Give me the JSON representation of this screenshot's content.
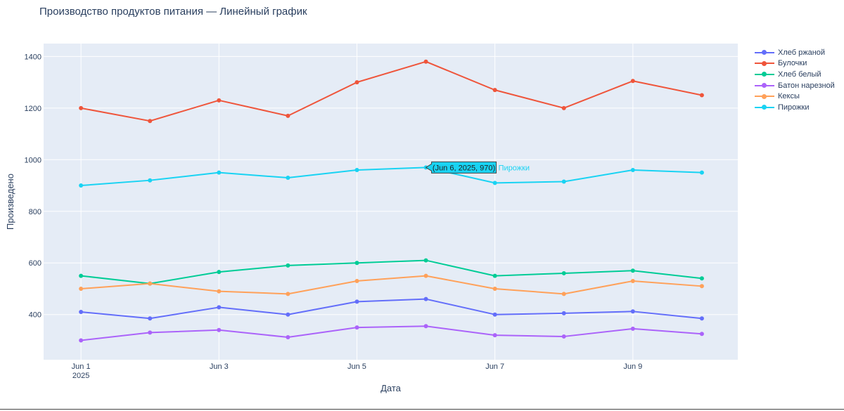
{
  "chart_data": {
    "type": "line",
    "title": "Производство продуктов питания — Линейный график",
    "xlabel": "Дата",
    "ylabel": "Произведено",
    "x": [
      "2025-06-01",
      "2025-06-02",
      "2025-06-03",
      "2025-06-04",
      "2025-06-05",
      "2025-06-06",
      "2025-06-07",
      "2025-06-08",
      "2025-06-09",
      "2025-06-10"
    ],
    "x_ticks": [
      {
        "date": "2025-06-01",
        "label": "Jun 1",
        "sublabel": "2025"
      },
      {
        "date": "2025-06-03",
        "label": "Jun 3",
        "sublabel": ""
      },
      {
        "date": "2025-06-05",
        "label": "Jun 5",
        "sublabel": ""
      },
      {
        "date": "2025-06-07",
        "label": "Jun 7",
        "sublabel": ""
      },
      {
        "date": "2025-06-09",
        "label": "Jun 9",
        "sublabel": ""
      }
    ],
    "xlim": [
      "2025-05-31T11:00",
      "2025-06-10T12:30"
    ],
    "ylim": [
      225,
      1450
    ],
    "y_ticks": [
      400,
      600,
      800,
      1000,
      1200,
      1400
    ],
    "grid": true,
    "legend_position": "top-right",
    "series": [
      {
        "name": "Хлеб ржаной",
        "color": "#636efa",
        "values": [
          410,
          385,
          428,
          400,
          450,
          460,
          400,
          405,
          412,
          385
        ]
      },
      {
        "name": "Булочки",
        "color": "#ef553b",
        "values": [
          1200,
          1150,
          1230,
          1170,
          1300,
          1380,
          1270,
          1200,
          1305,
          1250
        ]
      },
      {
        "name": "Хлеб белый",
        "color": "#00cc96",
        "values": [
          550,
          520,
          565,
          590,
          600,
          610,
          550,
          560,
          570,
          540
        ]
      },
      {
        "name": "Батон нарезной",
        "color": "#ab63fa",
        "values": [
          300,
          330,
          340,
          312,
          350,
          355,
          320,
          315,
          345,
          325
        ]
      },
      {
        "name": "Кексы",
        "color": "#ffa15a",
        "values": [
          500,
          520,
          490,
          480,
          530,
          550,
          500,
          480,
          530,
          510
        ]
      },
      {
        "name": "Пирожки",
        "color": "#19d3f3",
        "values": [
          900,
          920,
          950,
          930,
          960,
          970,
          910,
          915,
          960,
          950
        ]
      }
    ],
    "hover": {
      "series_index": 5,
      "point_index": 5,
      "text": "(Jun 6, 2025, 970)",
      "series_label": "Пирожки"
    }
  }
}
